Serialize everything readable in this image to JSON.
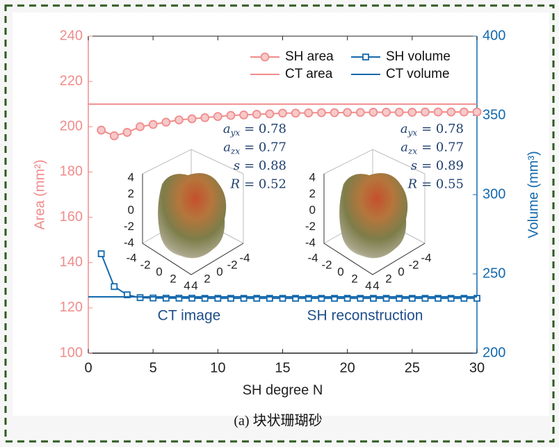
{
  "chart_data": {
    "type": "line",
    "xlabel": "SH degree N",
    "ylabel": "Area (mm²)",
    "y2label": "Volume (mm³)",
    "x": [
      1,
      2,
      3,
      4,
      5,
      6,
      7,
      8,
      9,
      10,
      11,
      12,
      13,
      14,
      15,
      16,
      17,
      18,
      19,
      20,
      21,
      22,
      23,
      24,
      25,
      26,
      27,
      28,
      29,
      30
    ],
    "series": [
      {
        "name": "SH area",
        "color": "#f08c8c",
        "axis": "y",
        "marker": "circle",
        "values": [
          198.5,
          196,
          197.5,
          200,
          201,
          202,
          203,
          203.5,
          204,
          204.5,
          205,
          205.2,
          205.5,
          205.7,
          206,
          206,
          206.1,
          206.2,
          206.2,
          206.3,
          206.3,
          206.4,
          206.4,
          206.4,
          206.4,
          206.5,
          206.5,
          206.5,
          206.5,
          206.5
        ]
      },
      {
        "name": "SH volume",
        "color": "#1469ad",
        "axis": "y2",
        "marker": "square",
        "values": [
          262.7,
          242,
          236.8,
          235,
          234.8,
          234.7,
          234.7,
          234.7,
          234.6,
          234.6,
          234.6,
          234.6,
          234.6,
          234.6,
          234.6,
          234.6,
          234.6,
          234.6,
          234.6,
          234.6,
          234.6,
          234.6,
          234.6,
          234.6,
          234.6,
          234.6,
          234.6,
          234.6,
          234.6,
          234.6
        ]
      },
      {
        "name": "CT area",
        "color": "#f08c8c",
        "axis": "y",
        "value": 210
      },
      {
        "name": "CT volume",
        "color": "#1469ad",
        "axis": "y2",
        "value": 235.5
      }
    ],
    "xlim": [
      0,
      30
    ],
    "xticks": [
      0,
      5,
      10,
      15,
      20,
      25,
      30
    ],
    "ylim": [
      100,
      240
    ],
    "yticks": [
      100,
      120,
      140,
      160,
      180,
      200,
      220,
      240
    ],
    "y2lim": [
      200,
      400
    ],
    "y2ticks": [
      200,
      250,
      300,
      350,
      400
    ],
    "legend": "upper right",
    "insets": [
      {
        "label": "CT image",
        "annotations": [
          {
            "symbol": "a",
            "sub": "yx",
            "text": "= 0.78"
          },
          {
            "symbol": "a",
            "sub": "zx",
            "text": "= 0.77"
          },
          {
            "symbol": "s",
            "sub": "",
            "text": "= 0.88"
          },
          {
            "symbol": "R",
            "sub": "",
            "text": "= 0.52"
          }
        ],
        "z_ticks": [
          4,
          2,
          0,
          -2,
          -4
        ],
        "x_ticks": [
          -4,
          -2,
          0,
          2,
          4
        ],
        "y_ticks": [
          4,
          2,
          0,
          -2,
          -4
        ]
      },
      {
        "label": "SH reconstruction",
        "annotations": [
          {
            "symbol": "a",
            "sub": "yx",
            "text": "= 0.78"
          },
          {
            "symbol": "a",
            "sub": "zx",
            "text": "= 0.77"
          },
          {
            "symbol": "s",
            "sub": "",
            "text": "= 0.89"
          },
          {
            "symbol": "R",
            "sub": "",
            "text": "= 0.55"
          }
        ],
        "z_ticks": [
          4,
          2,
          0,
          -2,
          -4
        ],
        "x_ticks": [
          -4,
          -2,
          0,
          2,
          4
        ],
        "y_ticks": [
          4,
          2,
          0,
          -2,
          -4
        ]
      }
    ]
  },
  "caption": "(a) 块状珊瑚砂"
}
